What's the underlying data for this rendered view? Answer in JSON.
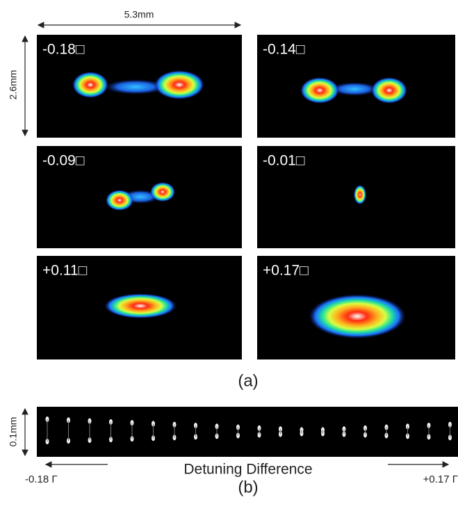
{
  "figure": {
    "width_label": "5.3mm",
    "height_label": "2.6mm",
    "panels": [
      {
        "label": "-0.18□"
      },
      {
        "label": "-0.14□"
      },
      {
        "label": "-0.09□"
      },
      {
        "label": "-0.01□"
      },
      {
        "label": "+0.11□"
      },
      {
        "label": "+0.17□"
      }
    ],
    "caption_a": "(a)",
    "strip_height_label": "0.1mm",
    "strip_title": "Detuning Difference",
    "strip_left": "-0.18 Γ",
    "strip_right": "+0.17 Γ",
    "caption_b": "(b)"
  }
}
